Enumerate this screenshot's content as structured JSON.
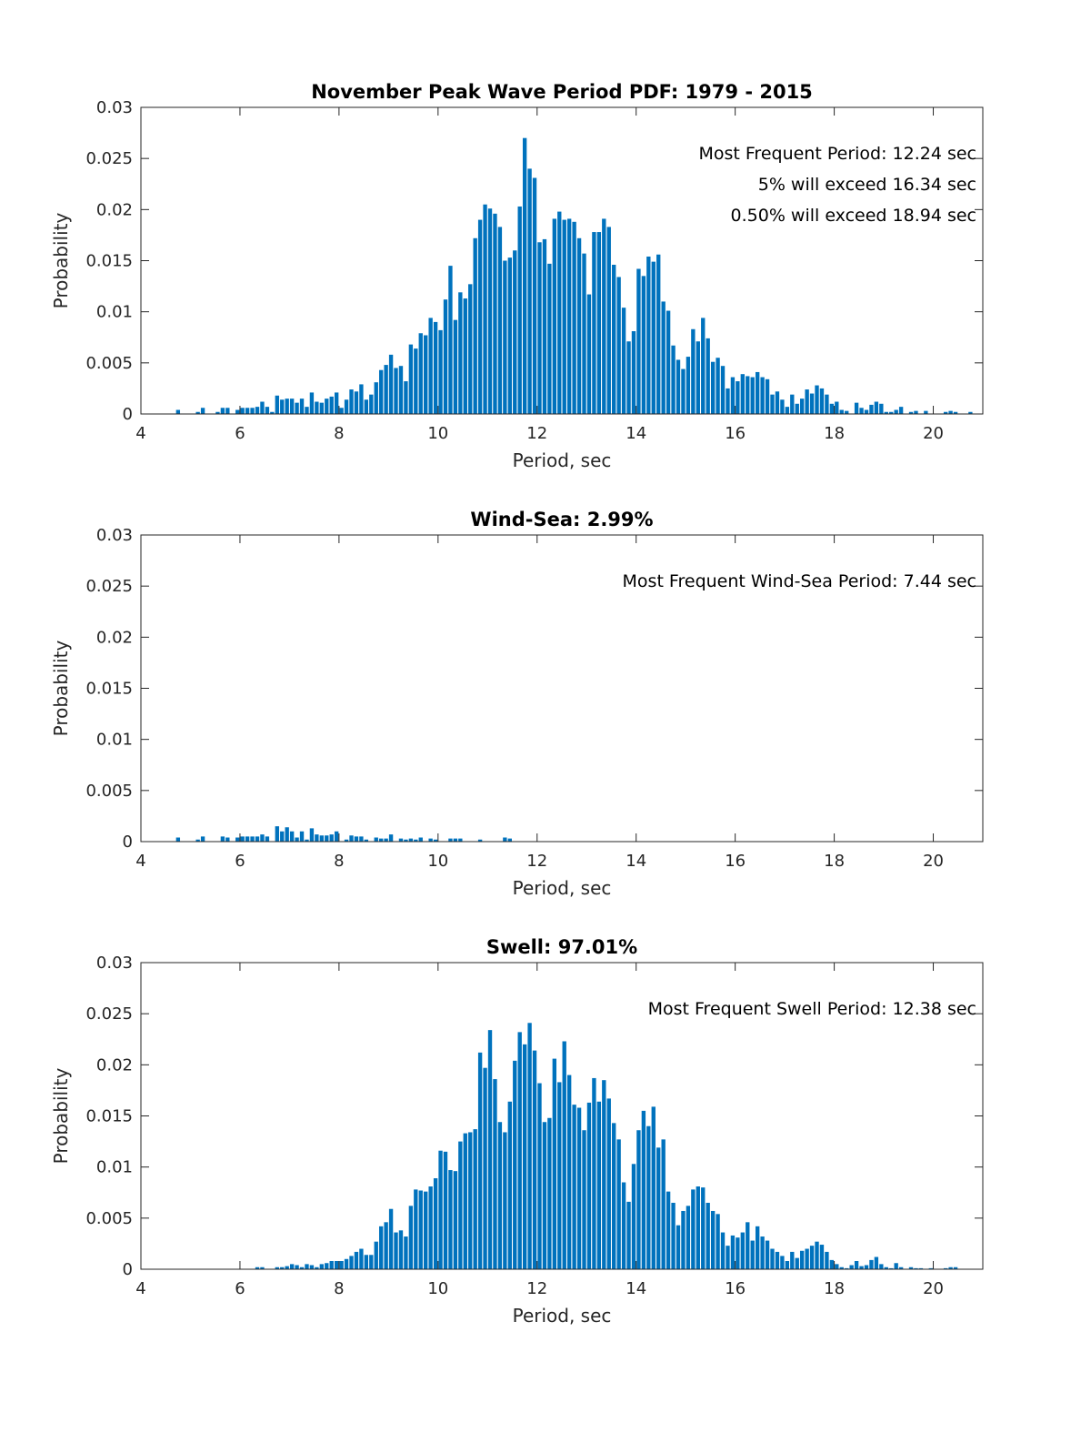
{
  "chart_data": [
    {
      "type": "bar",
      "title": "November Peak Wave Period PDF: 1979 - 2015",
      "xlabel": "Period, sec",
      "ylabel": "Probability",
      "xlim": [
        4,
        21
      ],
      "ylim": [
        0,
        0.03
      ],
      "xticks": [
        "4",
        "6",
        "8",
        "10",
        "12",
        "14",
        "16",
        "18",
        "20"
      ],
      "yticks": [
        "0",
        "0.005",
        "0.01",
        "0.015",
        "0.02",
        "0.025",
        "0.03"
      ],
      "annotations": [
        "Most Frequent Period: 12.24 sec",
        "5% will exceed 16.34 sec",
        "0.50% will exceed 18.94 sec"
      ],
      "color": "#0072BD",
      "x_start": 4.75,
      "bin_width": 0.1,
      "values": [
        0.0004,
        0,
        0,
        0,
        0.0002,
        0.0006,
        0,
        0,
        0.0002,
        0.0006,
        0.0006,
        0,
        0.0004,
        0.0006,
        0.0006,
        0.0006,
        0.0007,
        0.0012,
        0.0007,
        0.0002,
        0.0018,
        0.0014,
        0.0015,
        0.0015,
        0.0011,
        0.0015,
        0.0007,
        0.0021,
        0.0012,
        0.0011,
        0.0015,
        0.0017,
        0.0021,
        0.0006,
        0.0014,
        0.0024,
        0.0022,
        0.0029,
        0.0014,
        0.0019,
        0.0031,
        0.0043,
        0.0048,
        0.0058,
        0.0045,
        0.0047,
        0.0032,
        0.0068,
        0.0064,
        0.0079,
        0.0077,
        0.0094,
        0.009,
        0.0082,
        0.0112,
        0.0145,
        0.0092,
        0.0119,
        0.0113,
        0.0127,
        0.0172,
        0.019,
        0.0205,
        0.0201,
        0.0196,
        0.0183,
        0.015,
        0.0153,
        0.016,
        0.0203,
        0.027,
        0.024,
        0.0231,
        0.0168,
        0.0171,
        0.0147,
        0.0191,
        0.0198,
        0.019,
        0.0191,
        0.0188,
        0.0172,
        0.0157,
        0.0117,
        0.0178,
        0.0178,
        0.0191,
        0.0183,
        0.0146,
        0.0134,
        0.0104,
        0.0071,
        0.0081,
        0.0142,
        0.0135,
        0.0154,
        0.0149,
        0.0156,
        0.011,
        0.0101,
        0.0067,
        0.0053,
        0.0044,
        0.0056,
        0.0083,
        0.0071,
        0.0094,
        0.0074,
        0.0051,
        0.0055,
        0.0047,
        0.0025,
        0.0036,
        0.0032,
        0.0039,
        0.0037,
        0.0036,
        0.0041,
        0.0036,
        0.0034,
        0.0019,
        0.0022,
        0.0014,
        0.0007,
        0.0019,
        0.001,
        0.0015,
        0.0024,
        0.002,
        0.0028,
        0.0025,
        0.0019,
        0.001,
        0.0012,
        0.0004,
        0.0003,
        0,
        0.0011,
        0.0006,
        0.0004,
        0.0009,
        0.0012,
        0.001,
        0.0002,
        0.0002,
        0.0004,
        0.0007,
        0,
        0.0002,
        0.0003,
        0,
        0.0003,
        0,
        0,
        0,
        0.0002,
        0.0003,
        0.0002,
        0,
        0,
        0.0002
      ]
    },
    {
      "type": "bar",
      "title": "Wind-Sea: 2.99%",
      "xlabel": "Period, sec",
      "ylabel": "Probability",
      "xlim": [
        4,
        21
      ],
      "ylim": [
        0,
        0.03
      ],
      "xticks": [
        "4",
        "6",
        "8",
        "10",
        "12",
        "14",
        "16",
        "18",
        "20"
      ],
      "yticks": [
        "0",
        "0.005",
        "0.01",
        "0.015",
        "0.02",
        "0.025",
        "0.03"
      ],
      "annotations": [
        "Most Frequent Wind-Sea Period: 7.44 sec"
      ],
      "color": "#0072BD",
      "x_start": 4.75,
      "bin_width": 0.1,
      "values": [
        0.0004,
        0,
        0,
        0,
        0.0002,
        0.0005,
        0,
        0,
        0,
        0.0005,
        0.0004,
        0,
        0.0004,
        0.0005,
        0.0005,
        0.0005,
        0.0005,
        0.0007,
        0.0005,
        0,
        0.0015,
        0.001,
        0.0014,
        0.001,
        0.0004,
        0.001,
        0.0002,
        0.0013,
        0.0007,
        0.0006,
        0.0006,
        0.0007,
        0.001,
        0,
        0.0002,
        0.0006,
        0.0005,
        0.0005,
        0.0002,
        0,
        0.0004,
        0.0003,
        0.0003,
        0.0007,
        0,
        0.0003,
        0.0002,
        0.0003,
        0.0002,
        0.0004,
        0,
        0.0003,
        0.0002,
        0,
        0,
        0.0003,
        0.0003,
        0.0003,
        0,
        0,
        0,
        0.0002,
        0,
        0,
        0,
        0,
        0.0004,
        0.0003
      ]
    },
    {
      "type": "bar",
      "title": "Swell: 97.01%",
      "xlabel": "Period, sec",
      "ylabel": "Probability",
      "xlim": [
        4,
        21
      ],
      "ylim": [
        0,
        0.03
      ],
      "xticks": [
        "4",
        "6",
        "8",
        "10",
        "12",
        "14",
        "16",
        "18",
        "20"
      ],
      "yticks": [
        "0",
        "0.005",
        "0.01",
        "0.015",
        "0.02",
        "0.025",
        "0.03"
      ],
      "annotations": [
        "Most Frequent Swell Period: 12.38 sec"
      ],
      "color": "#0072BD",
      "x_start": 4.75,
      "bin_width": 0.1,
      "values": [
        0,
        0,
        0,
        0,
        0,
        0,
        0,
        0,
        0,
        0,
        0,
        0,
        0,
        0,
        0,
        0,
        0.0002,
        0.0002,
        0,
        0,
        0.0002,
        0.0002,
        0.0003,
        0.0005,
        0.0004,
        0.0002,
        0.0005,
        0.0004,
        0.0002,
        0.0005,
        0.0006,
        0.0008,
        0.0008,
        0.0008,
        0.001,
        0.0013,
        0.0017,
        0.002,
        0.0014,
        0.0014,
        0.0027,
        0.0042,
        0.0046,
        0.0059,
        0.0036,
        0.0038,
        0.0032,
        0.0062,
        0.0078,
        0.0077,
        0.0076,
        0.0081,
        0.0089,
        0.0116,
        0.0115,
        0.0097,
        0.0096,
        0.0125,
        0.0133,
        0.0134,
        0.0137,
        0.0212,
        0.0197,
        0.0234,
        0.0186,
        0.0144,
        0.0134,
        0.0164,
        0.0204,
        0.0232,
        0.022,
        0.0241,
        0.0214,
        0.0182,
        0.0144,
        0.0148,
        0.0206,
        0.0183,
        0.0223,
        0.019,
        0.0161,
        0.0158,
        0.0136,
        0.0163,
        0.0187,
        0.0164,
        0.0185,
        0.0167,
        0.0143,
        0.0127,
        0.0085,
        0.0066,
        0.0103,
        0.0136,
        0.0155,
        0.014,
        0.0159,
        0.0119,
        0.0127,
        0.0076,
        0.0065,
        0.0043,
        0.0057,
        0.0062,
        0.0078,
        0.0081,
        0.008,
        0.0065,
        0.0057,
        0.0054,
        0.0036,
        0.0023,
        0.0033,
        0.0031,
        0.0036,
        0.0046,
        0.0028,
        0.0042,
        0.0032,
        0.0028,
        0.002,
        0.0017,
        0.0013,
        0.0008,
        0.0017,
        0.0011,
        0.0018,
        0.002,
        0.0023,
        0.0027,
        0.0024,
        0.0017,
        0.0009,
        0.0005,
        0.0002,
        0.0001,
        0.0004,
        0.0008,
        0.0003,
        0.0004,
        0.0009,
        0.0012,
        0.0005,
        0.0002,
        0.0001,
        0.0006,
        0.0002,
        0,
        0.0002,
        0.0001,
        0.0001,
        0,
        0.0001,
        0,
        0,
        0.0001,
        0.0002,
        0.0002
      ]
    }
  ]
}
